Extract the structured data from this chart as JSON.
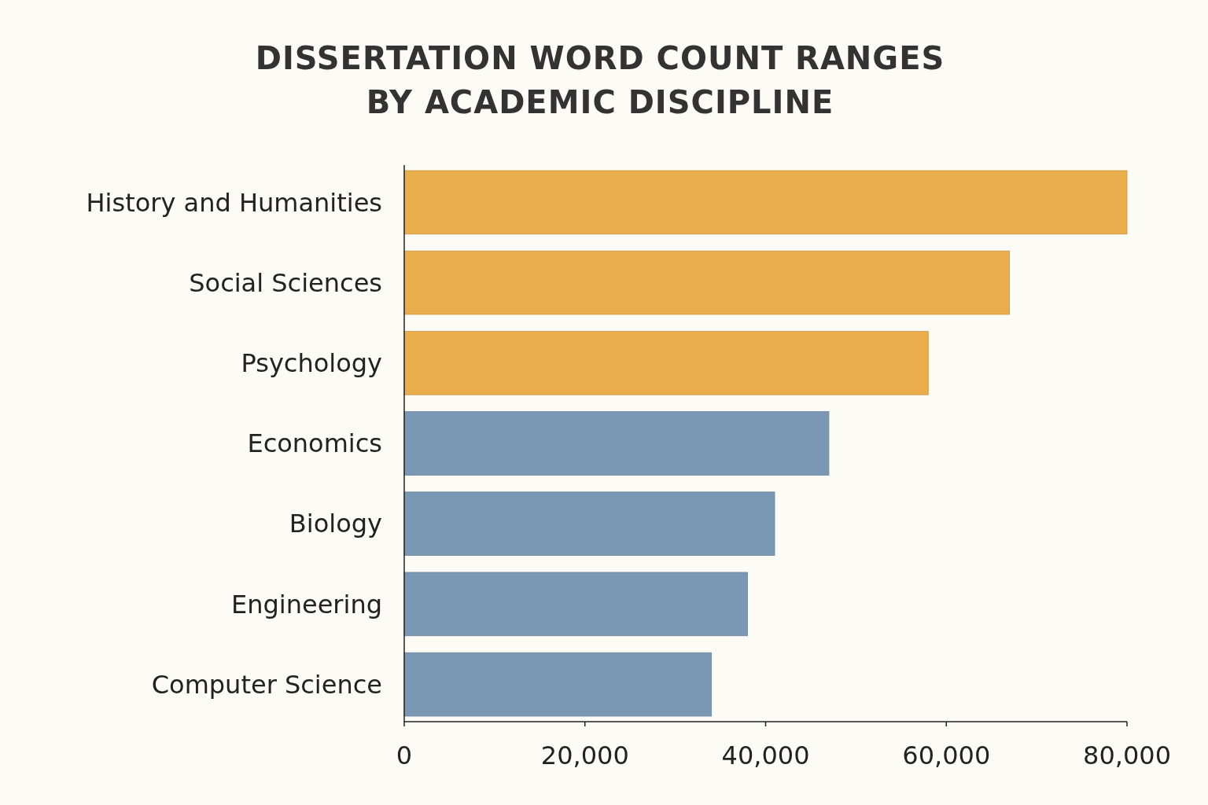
{
  "chart_data": {
    "type": "bar",
    "orientation": "horizontal",
    "title": "DISSERTATION WORD COUNT RANGES\nBY ACADEMIC DISCIPLINE",
    "categories": [
      "History and Humanities",
      "Social Sciences",
      "Psychology",
      "Economics",
      "Biology",
      "Engineering",
      "Computer Science"
    ],
    "values": [
      80000,
      67000,
      58000,
      47000,
      41000,
      38000,
      34000
    ],
    "colors": [
      "#e9ae4b",
      "#e9ae4b",
      "#e9ae4b",
      "#7a97b3",
      "#7a97b3",
      "#7a97b3",
      "#7a97b3"
    ],
    "xlim": [
      0,
      80000
    ],
    "xticks": [
      0,
      {
        "value": 20000,
        "label": "20,000"
      },
      {
        "value": 40000,
        "label": "40,000"
      },
      {
        "value": 60000,
        "label": "60,000"
      },
      {
        "value": 80000,
        "label": "80,000"
      }
    ],
    "grid": false
  }
}
